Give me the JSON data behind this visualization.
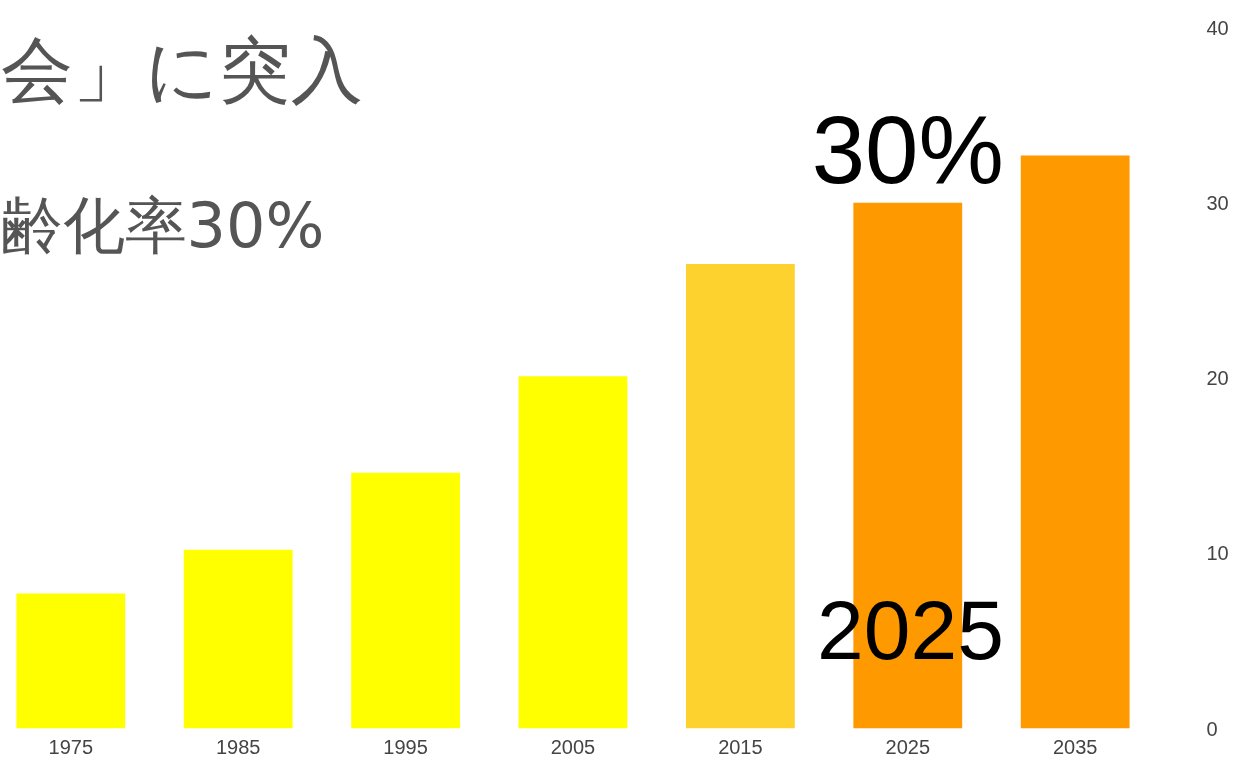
{
  "chart_data": {
    "type": "bar",
    "title": "会」に突入",
    "subtitle": "齢化率30%",
    "categories": [
      "1975",
      "1985",
      "1995",
      "2005",
      "2015",
      "2025",
      "2035"
    ],
    "values": [
      7.7,
      10.2,
      14.6,
      20.1,
      26.5,
      30.0,
      32.7
    ],
    "colors": [
      "#ffff00",
      "#ffff00",
      "#ffff00",
      "#ffff00",
      "#fdd22f",
      "#ff9900",
      "#ff9900"
    ],
    "ylim": [
      0,
      40
    ],
    "yticks": [
      0,
      10,
      20,
      30,
      40
    ],
    "grid": false,
    "annotations": [
      {
        "text": "30%",
        "x": "2025",
        "y": 30
      },
      "2025"
    ]
  }
}
